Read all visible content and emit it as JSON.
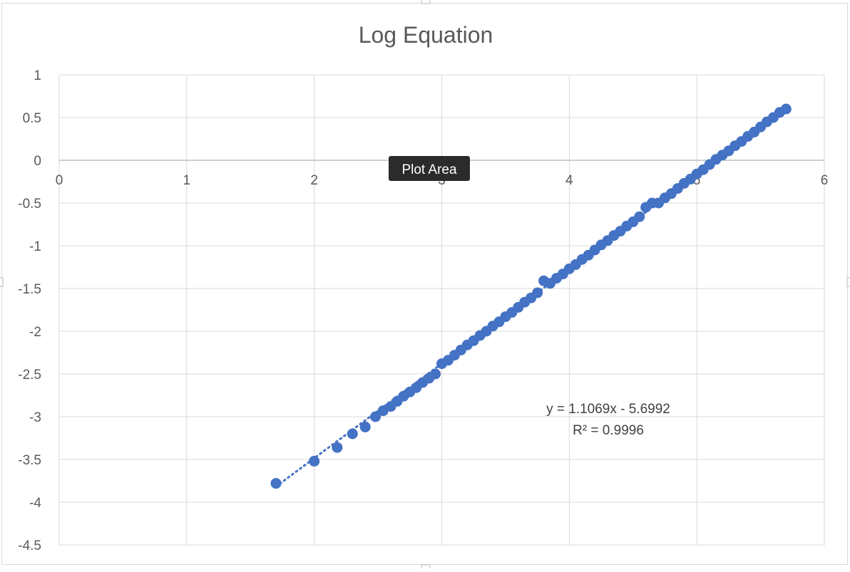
{
  "chart_data": {
    "type": "scatter",
    "title": "Log Equation",
    "xlabel": "",
    "ylabel": "",
    "xlim": [
      0,
      6
    ],
    "ylim": [
      -4.5,
      1
    ],
    "x_ticks": [
      "0",
      "1",
      "2",
      "3",
      "4",
      "5",
      "6"
    ],
    "y_ticks": [
      "1",
      "0.5",
      "0",
      "-0.5",
      "-1",
      "-1.5",
      "-2",
      "-2.5",
      "-3",
      "-3.5",
      "-4",
      "-4.5"
    ],
    "grid": true,
    "series": [
      {
        "marker_color": "#4472C4",
        "points": [
          [
            1.7,
            -3.78
          ],
          [
            2.0,
            -3.52
          ],
          [
            2.18,
            -3.36
          ],
          [
            2.3,
            -3.2
          ],
          [
            2.4,
            -3.12
          ],
          [
            2.48,
            -3.0
          ],
          [
            2.54,
            -2.93
          ],
          [
            2.6,
            -2.88
          ],
          [
            2.65,
            -2.82
          ],
          [
            2.7,
            -2.76
          ],
          [
            2.75,
            -2.71
          ],
          [
            2.8,
            -2.66
          ],
          [
            2.85,
            -2.6
          ],
          [
            2.9,
            -2.55
          ],
          [
            2.95,
            -2.5
          ],
          [
            3.0,
            -2.38
          ],
          [
            3.05,
            -2.34
          ],
          [
            3.1,
            -2.28
          ],
          [
            3.15,
            -2.22
          ],
          [
            3.2,
            -2.16
          ],
          [
            3.25,
            -2.11
          ],
          [
            3.3,
            -2.05
          ],
          [
            3.35,
            -2.0
          ],
          [
            3.4,
            -1.94
          ],
          [
            3.45,
            -1.89
          ],
          [
            3.5,
            -1.83
          ],
          [
            3.55,
            -1.78
          ],
          [
            3.6,
            -1.72
          ],
          [
            3.65,
            -1.66
          ],
          [
            3.7,
            -1.61
          ],
          [
            3.75,
            -1.55
          ],
          [
            3.8,
            -1.41
          ],
          [
            3.85,
            -1.44
          ],
          [
            3.9,
            -1.38
          ],
          [
            3.95,
            -1.33
          ],
          [
            4.0,
            -1.27
          ],
          [
            4.05,
            -1.22
          ],
          [
            4.1,
            -1.16
          ],
          [
            4.15,
            -1.11
          ],
          [
            4.2,
            -1.05
          ],
          [
            4.25,
            -0.99
          ],
          [
            4.3,
            -0.94
          ],
          [
            4.35,
            -0.88
          ],
          [
            4.4,
            -0.83
          ],
          [
            4.45,
            -0.77
          ],
          [
            4.5,
            -0.72
          ],
          [
            4.55,
            -0.66
          ],
          [
            4.6,
            -0.55
          ],
          [
            4.65,
            -0.5
          ],
          [
            4.7,
            -0.5
          ],
          [
            4.75,
            -0.44
          ],
          [
            4.8,
            -0.39
          ],
          [
            4.85,
            -0.33
          ],
          [
            4.9,
            -0.27
          ],
          [
            4.95,
            -0.22
          ],
          [
            5.0,
            -0.16
          ],
          [
            5.05,
            -0.11
          ],
          [
            5.1,
            -0.05
          ],
          [
            5.15,
            0.01
          ],
          [
            5.2,
            0.06
          ],
          [
            5.25,
            0.11
          ],
          [
            5.3,
            0.17
          ],
          [
            5.35,
            0.22
          ],
          [
            5.4,
            0.28
          ],
          [
            5.45,
            0.33
          ],
          [
            5.5,
            0.39
          ],
          [
            5.55,
            0.45
          ],
          [
            5.6,
            0.5
          ],
          [
            5.65,
            0.56
          ],
          [
            5.7,
            0.6
          ]
        ]
      }
    ],
    "trendline": {
      "type": "linear",
      "style": "dotted",
      "slope": 1.1069,
      "intercept": -5.6992,
      "x_range": [
        1.7,
        5.7
      ],
      "equation_label": "y = 1.1069x - 5.6992",
      "r2_label": "R² = 0.9996"
    },
    "tooltip": "Plot Area"
  }
}
